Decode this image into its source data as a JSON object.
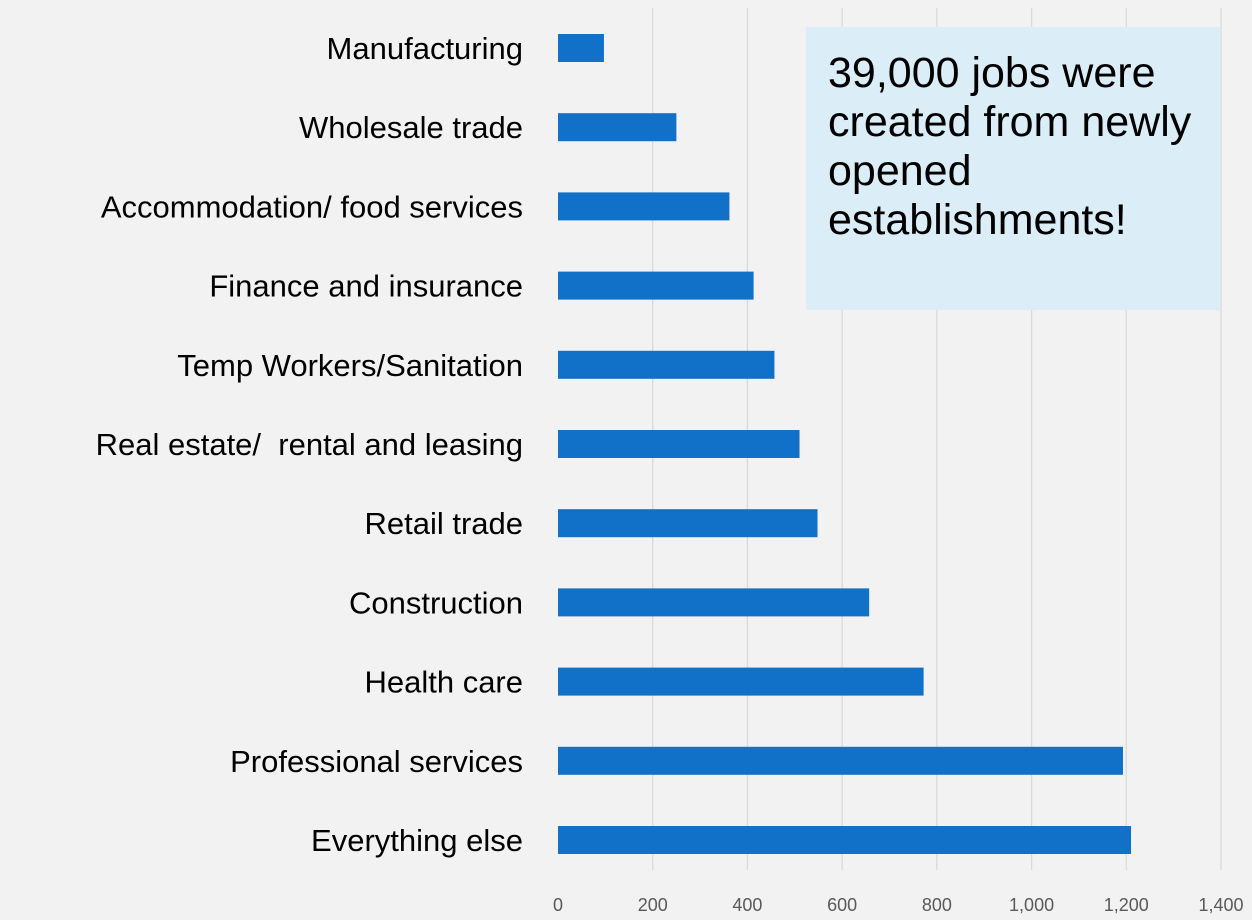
{
  "chart_data": {
    "type": "bar",
    "orientation": "horizontal",
    "categories": [
      "Manufacturing",
      "Wholesale trade",
      "Accommodation/ food services",
      "Finance and insurance",
      "Temp Workers/Sanitation",
      "Real estate/  rental and leasing",
      "Retail trade",
      "Construction",
      "Health care",
      "Professional services",
      "Everything else"
    ],
    "values": [
      97,
      250,
      362,
      413,
      457,
      510,
      548,
      657,
      772,
      1193,
      1210
    ],
    "xlim": [
      0,
      1400
    ],
    "xticks": [
      0,
      200,
      400,
      600,
      800,
      1000,
      1200,
      1400
    ],
    "xtick_labels": [
      "0",
      "200",
      "400",
      "600",
      "800",
      "1,000",
      "1,200",
      "1,400"
    ],
    "grid": "vertical",
    "bar_color": "#1170c8",
    "annotation": "39,000 jobs were created from newly opened establishments!"
  },
  "colors": {
    "background": "#f2f2f2",
    "bar": "#1170c8",
    "grid": "#d9d9d9",
    "callout_fill": "#dbeef7"
  }
}
